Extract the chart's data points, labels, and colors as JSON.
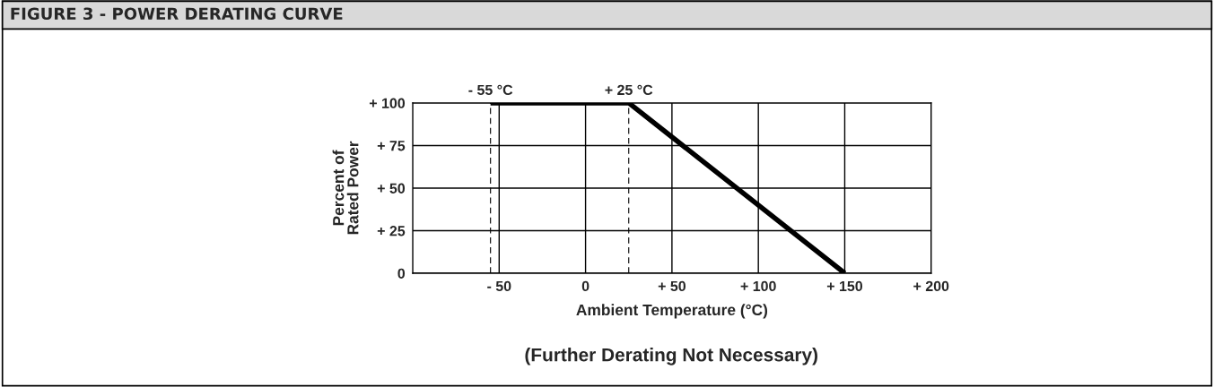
{
  "chart_data": {
    "type": "line",
    "title": "FIGURE 3 - POWER DERATING CURVE",
    "xlabel": "Ambient Temperature (°C)",
    "ylabel": "Percent of\nRated Power",
    "x": [
      -55,
      25,
      150
    ],
    "series": [
      {
        "color": "#000000",
        "values": [
          100,
          100,
          0
        ]
      }
    ],
    "xlim": [
      -100,
      200
    ],
    "xticks": [
      {
        "value": -50,
        "label": "- 50"
      },
      0,
      {
        "value": 50,
        "label": "+ 50"
      },
      {
        "value": 100,
        "label": "+ 100"
      },
      {
        "value": 150,
        "label": "+ 150"
      },
      {
        "value": 200,
        "label": "+ 200"
      }
    ],
    "ylim": [
      0,
      100
    ],
    "yticks": [
      0,
      {
        "value": 25,
        "label": "+ 25"
      },
      {
        "value": 50,
        "label": "+ 50"
      },
      {
        "value": 75,
        "label": "+ 75"
      },
      {
        "value": 100,
        "label": "+ 100"
      }
    ],
    "ref_lines": [
      {
        "axis": "x",
        "value": -55,
        "label": "- 55 °C",
        "color": "#000000",
        "line_style": "dashed"
      },
      {
        "axis": "x",
        "value": 25,
        "label": "+ 25 °C",
        "color": "#000000",
        "line_style": "dashed"
      }
    ],
    "annotations": [
      "(Further Derating Not Necessary)"
    ],
    "grid": true,
    "legend": false,
    "marker": "none",
    "line_style": "solid"
  }
}
